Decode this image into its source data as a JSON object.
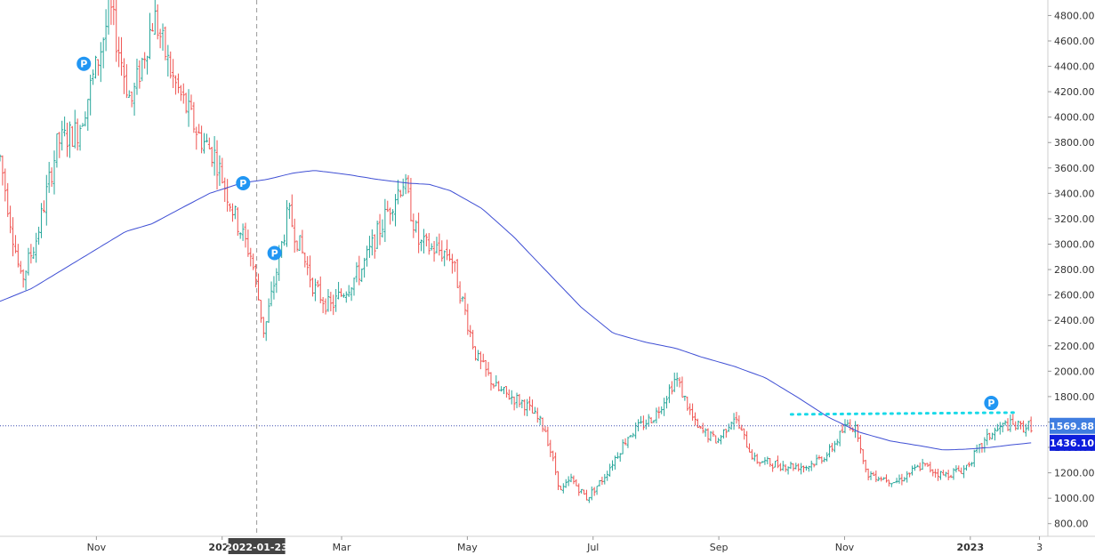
{
  "chart_data": {
    "type": "ohlc",
    "title": "",
    "xlabel": "",
    "ylabel": "",
    "ylim": [
      700,
      4880
    ],
    "grid": false,
    "colors": {
      "up": "#26a69a",
      "down": "#ef5350",
      "moving_average": "#3f4fd4",
      "resistance": "#19d9e8",
      "marker": "#2196f3",
      "last_price_badge": "#3f7de0",
      "ma_badge": "#0d1ddc"
    },
    "x_tick_labels": [
      "Nov",
      "2022",
      "Mar",
      "May",
      "Jul",
      "Sep",
      "Nov",
      "2023",
      "3"
    ],
    "x_tick_fracs": [
      0.092,
      0.212,
      0.326,
      0.446,
      0.566,
      0.686,
      0.806,
      0.926,
      0.992
    ],
    "y_ticks": [
      4800,
      4600,
      4400,
      4200,
      4000,
      3800,
      3600,
      3400,
      3200,
      3000,
      2800,
      2600,
      2400,
      2200,
      2000,
      1800,
      1600,
      1400,
      1200,
      1000,
      800
    ],
    "y_tick_labels": [
      "4800.00",
      "4600.00",
      "4400.00",
      "4200.00",
      "4000.00",
      "3800.00",
      "3600.00",
      "3400.00",
      "3200.00",
      "3000.00",
      "2800.00",
      "2600.00",
      "2400.00",
      "2200.00",
      "2000.00",
      "1800.00",
      "1600.00",
      "1400.00",
      "1200.00",
      "1000.00",
      "800.00"
    ],
    "crosshair_date": "2022-01-23",
    "last_price": 1569.88,
    "last_price_label": "1569.88",
    "moving_average_value": 1436.1,
    "moving_average_label": "1436.10",
    "resistance_level": 1660,
    "markers": [
      "P",
      "P",
      "P",
      "P"
    ],
    "price_keyframes": [
      [
        0.0,
        3680
      ],
      [
        0.02,
        2700
      ],
      [
        0.035,
        3050
      ],
      [
        0.055,
        3800
      ],
      [
        0.075,
        3900
      ],
      [
        0.092,
        4400
      ],
      [
        0.105,
        4850
      ],
      [
        0.125,
        4100
      ],
      [
        0.147,
        4800
      ],
      [
        0.165,
        4300
      ],
      [
        0.19,
        3850
      ],
      [
        0.205,
        3700
      ],
      [
        0.225,
        3200
      ],
      [
        0.24,
        2900
      ],
      [
        0.252,
        2300
      ],
      [
        0.275,
        3250
      ],
      [
        0.3,
        2650
      ],
      [
        0.315,
        2500
      ],
      [
        0.345,
        2800
      ],
      [
        0.375,
        3350
      ],
      [
        0.385,
        3500
      ],
      [
        0.4,
        3000
      ],
      [
        0.43,
        2920
      ],
      [
        0.455,
        2100
      ],
      [
        0.475,
        1850
      ],
      [
        0.5,
        1750
      ],
      [
        0.52,
        1550
      ],
      [
        0.535,
        1050
      ],
      [
        0.545,
        1150
      ],
      [
        0.56,
        1000
      ],
      [
        0.575,
        1150
      ],
      [
        0.6,
        1500
      ],
      [
        0.625,
        1650
      ],
      [
        0.645,
        1950
      ],
      [
        0.665,
        1550
      ],
      [
        0.685,
        1450
      ],
      [
        0.7,
        1650
      ],
      [
        0.72,
        1300
      ],
      [
        0.745,
        1260
      ],
      [
        0.77,
        1250
      ],
      [
        0.79,
        1350
      ],
      [
        0.81,
        1600
      ],
      [
        0.82,
        1500
      ],
      [
        0.825,
        1200
      ],
      [
        0.835,
        1180
      ],
      [
        0.855,
        1130
      ],
      [
        0.88,
        1260
      ],
      [
        0.9,
        1180
      ],
      [
        0.92,
        1230
      ],
      [
        0.945,
        1500
      ],
      [
        0.96,
        1580
      ],
      [
        0.975,
        1560
      ],
      [
        0.984,
        1570
      ]
    ],
    "ma_keyframes": [
      [
        0.0,
        2550
      ],
      [
        0.03,
        2650
      ],
      [
        0.06,
        2800
      ],
      [
        0.09,
        2950
      ],
      [
        0.12,
        3100
      ],
      [
        0.145,
        3160
      ],
      [
        0.17,
        3270
      ],
      [
        0.2,
        3400
      ],
      [
        0.23,
        3480
      ],
      [
        0.255,
        3510
      ],
      [
        0.28,
        3560
      ],
      [
        0.3,
        3580
      ],
      [
        0.33,
        3550
      ],
      [
        0.36,
        3510
      ],
      [
        0.39,
        3480
      ],
      [
        0.41,
        3470
      ],
      [
        0.43,
        3420
      ],
      [
        0.46,
        3280
      ],
      [
        0.49,
        3060
      ],
      [
        0.52,
        2800
      ],
      [
        0.555,
        2500
      ],
      [
        0.585,
        2300
      ],
      [
        0.615,
        2230
      ],
      [
        0.645,
        2180
      ],
      [
        0.67,
        2110
      ],
      [
        0.7,
        2040
      ],
      [
        0.73,
        1950
      ],
      [
        0.76,
        1800
      ],
      [
        0.79,
        1640
      ],
      [
        0.82,
        1520
      ],
      [
        0.85,
        1450
      ],
      [
        0.88,
        1410
      ],
      [
        0.9,
        1380
      ],
      [
        0.92,
        1385
      ],
      [
        0.945,
        1400
      ],
      [
        0.965,
        1420
      ],
      [
        0.984,
        1436
      ]
    ],
    "marker_fracs": [
      [
        0.08,
        4420
      ],
      [
        0.232,
        3480
      ],
      [
        0.262,
        2930
      ],
      [
        0.946,
        1750
      ]
    ],
    "crosshair_frac": 0.245,
    "resistance_span": [
      0.755,
      0.968
    ]
  }
}
